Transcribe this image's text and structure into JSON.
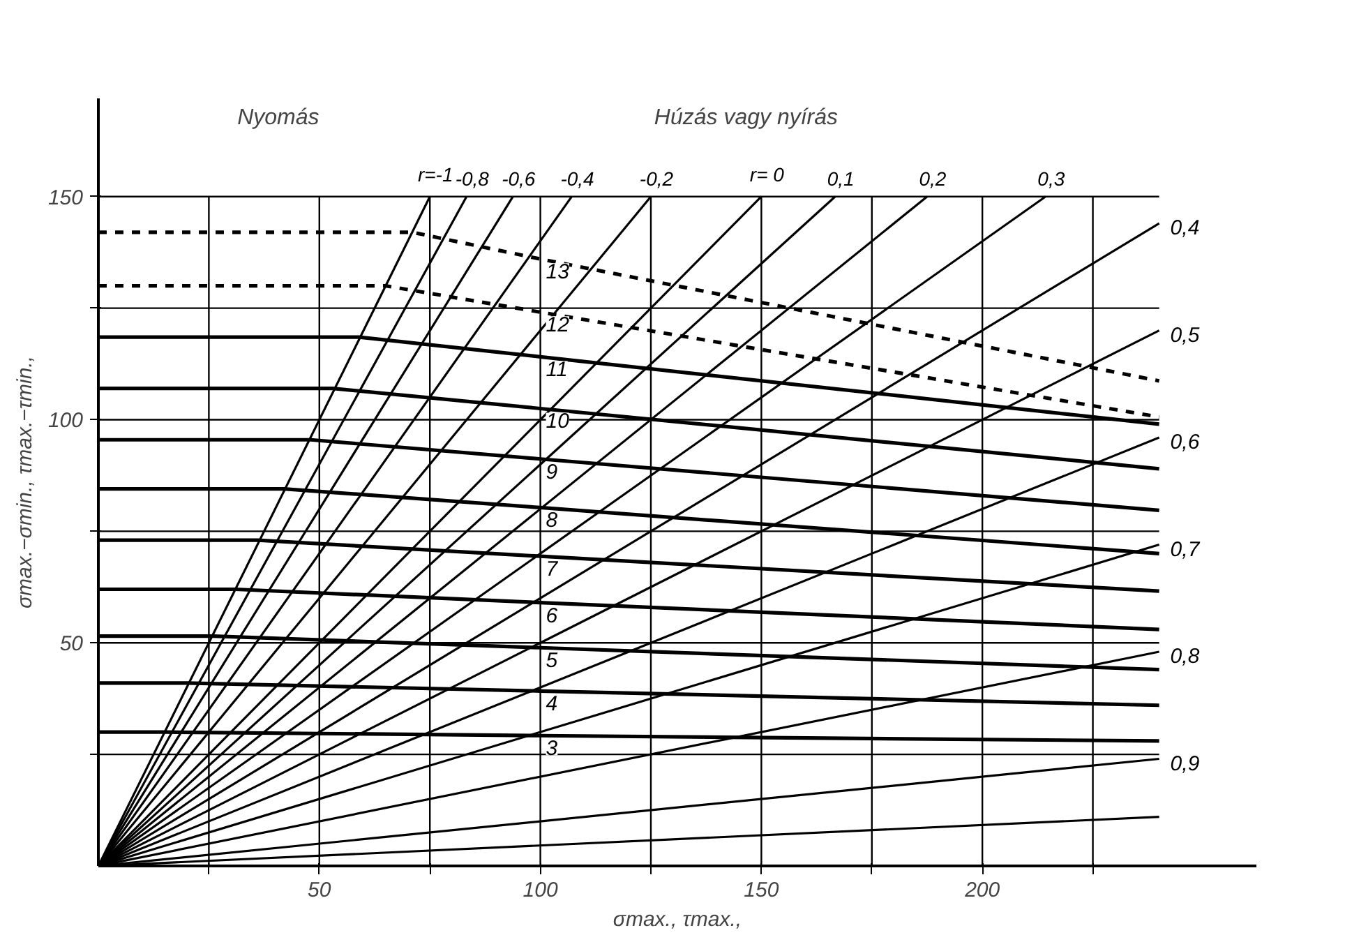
{
  "chart_data": {
    "type": "line",
    "xlabel": "σmax., τmax.,",
    "ylabel": "σmax.−σmin., τmax.−τmin.,",
    "annotations": [
      "Nyomás",
      "Húzás vagy nyírás"
    ],
    "xlim": [
      0,
      262
    ],
    "ylim": [
      0,
      172
    ],
    "xticks": [
      {
        "value": 25,
        "label": null
      },
      50,
      {
        "value": 75,
        "label": null
      },
      100,
      {
        "value": 125,
        "label": null
      },
      150,
      {
        "value": 175,
        "label": null
      },
      200,
      {
        "value": 225,
        "label": null
      }
    ],
    "yticks": [
      {
        "value": 25,
        "label": null
      },
      50,
      {
        "value": 75,
        "label": null
      },
      100,
      {
        "value": 125,
        "label": null
      },
      150
    ],
    "grid": true,
    "marker": "none",
    "line_style": "solid",
    "series": [
      {
        "name": "r=-1",
        "color": "#000000",
        "x": [
          0,
          75
        ],
        "values": [
          0,
          150
        ]
      },
      {
        "name": "-0,8",
        "color": "#000000",
        "x": [
          0,
          83.3
        ],
        "values": [
          0,
          150
        ]
      },
      {
        "name": "-0,6",
        "color": "#000000",
        "x": [
          0,
          93.8
        ],
        "values": [
          0,
          150
        ]
      },
      {
        "name": "-0,4",
        "color": "#000000",
        "x": [
          0,
          107.1
        ],
        "values": [
          0,
          150
        ]
      },
      {
        "name": "-0,2",
        "color": "#000000",
        "x": [
          0,
          125
        ],
        "values": [
          0,
          150
        ]
      },
      {
        "name": "r= 0",
        "color": "#000000",
        "x": [
          0,
          150
        ],
        "values": [
          0,
          150
        ]
      },
      {
        "name": "0,1",
        "color": "#000000",
        "x": [
          0,
          166.7
        ],
        "values": [
          0,
          150
        ]
      },
      {
        "name": "0,2",
        "color": "#000000",
        "x": [
          0,
          187.5
        ],
        "values": [
          0,
          150
        ]
      },
      {
        "name": "0,3",
        "color": "#000000",
        "x": [
          0,
          214.3
        ],
        "values": [
          0,
          150
        ]
      },
      {
        "name": "0,4",
        "color": "#000000",
        "x": [
          0,
          240
        ],
        "values": [
          0,
          144
        ]
      },
      {
        "name": "0,5",
        "color": "#000000",
        "x": [
          0,
          240
        ],
        "values": [
          0,
          120
        ]
      },
      {
        "name": "0,6",
        "color": "#000000",
        "x": [
          0,
          240
        ],
        "values": [
          0,
          96
        ]
      },
      {
        "name": "0,7",
        "color": "#000000",
        "x": [
          0,
          240
        ],
        "values": [
          0,
          72
        ]
      },
      {
        "name": "0,8",
        "color": "#000000",
        "x": [
          0,
          240
        ],
        "values": [
          0,
          48
        ]
      },
      {
        "name": "0,9",
        "color": "#000000",
        "x": [
          0,
          240
        ],
        "values": [
          0,
          24
        ]
      },
      {
        "color": "#000000",
        "x": [
          0,
          240
        ],
        "values": [
          0,
          11
        ]
      },
      {
        "name": "3",
        "color": "#000000",
        "x": [
          0,
          15,
          100,
          240
        ],
        "values": [
          30,
          30,
          29.2,
          28
        ]
      },
      {
        "name": "4",
        "color": "#000000",
        "x": [
          0,
          20,
          100,
          240
        ],
        "values": [
          41,
          41,
          39.2,
          36
        ]
      },
      {
        "name": "5",
        "color": "#000000",
        "x": [
          0,
          26,
          100,
          240
        ],
        "values": [
          51.5,
          51.5,
          48.9,
          44
        ]
      },
      {
        "name": "6",
        "color": "#000000",
        "x": [
          0,
          31,
          100,
          240
        ],
        "values": [
          62,
          62,
          59,
          53
        ]
      },
      {
        "name": "7",
        "color": "#000000",
        "x": [
          0,
          36,
          100,
          240
        ],
        "values": [
          73,
          73,
          69.4,
          61.6
        ]
      },
      {
        "name": "8",
        "color": "#000000",
        "x": [
          0,
          42,
          100,
          240
        ],
        "values": [
          84.5,
          84.5,
          80.3,
          70
        ]
      },
      {
        "name": "9",
        "color": "#000000",
        "x": [
          0,
          48,
          100,
          240
        ],
        "values": [
          95.5,
          95.5,
          91.2,
          79.7
        ]
      },
      {
        "name": "10",
        "color": "#000000",
        "x": [
          0,
          53,
          100,
          240
        ],
        "values": [
          107,
          107,
          102.5,
          89
        ]
      },
      {
        "name": "11",
        "color": "#000000",
        "x": [
          0,
          59,
          100,
          240
        ],
        "values": [
          118.5,
          118.5,
          114.1,
          99
        ]
      },
      {
        "name": "12",
        "color": "#000000",
        "line_style": "dashed",
        "x": [
          0,
          65,
          100,
          240
        ],
        "values": [
          130,
          130,
          124.1,
          100.6
        ]
      },
      {
        "name": "13",
        "color": "#000000",
        "line_style": "dashed",
        "x": [
          0,
          71,
          100,
          240
        ],
        "values": [
          142,
          142,
          136,
          108.7
        ]
      }
    ]
  }
}
